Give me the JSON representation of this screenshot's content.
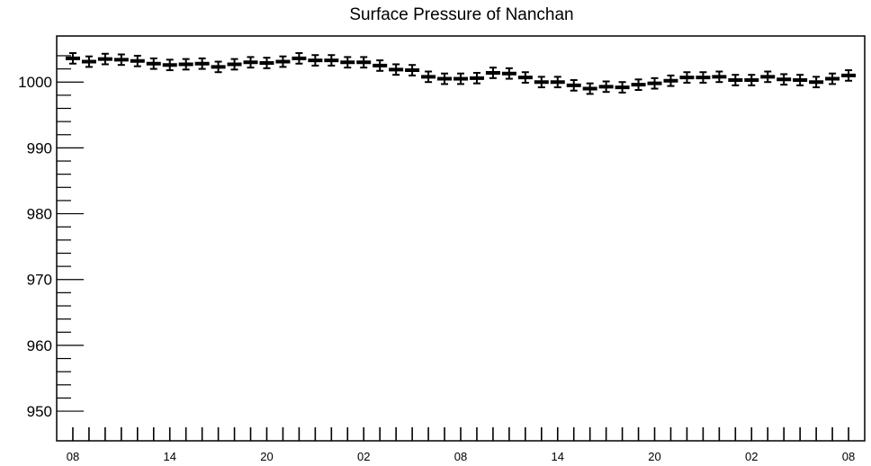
{
  "chart_data": {
    "type": "scatter",
    "title": "Surface Pressure of Nanchan",
    "xlabel": "",
    "ylabel": "",
    "ylim": [
      945.5,
      1007
    ],
    "xlim": [
      -1,
      49
    ],
    "grid": false,
    "legend": "none",
    "y_ticks": [
      1000,
      990,
      980,
      970,
      960,
      950
    ],
    "x_ticks": [
      {
        "x": 0,
        "label": "08"
      },
      {
        "x": 6,
        "label": "14"
      },
      {
        "x": 12,
        "label": "20"
      },
      {
        "x": 18,
        "label": "02"
      },
      {
        "x": 24,
        "label": "08"
      },
      {
        "x": 30,
        "label": "14"
      },
      {
        "x": 36,
        "label": "20"
      },
      {
        "x": 42,
        "label": "02"
      },
      {
        "x": 48,
        "label": "08"
      }
    ],
    "x": [
      0,
      1,
      2,
      3,
      4,
      5,
      6,
      7,
      8,
      9,
      10,
      11,
      12,
      13,
      14,
      15,
      16,
      17,
      18,
      19,
      20,
      21,
      22,
      23,
      24,
      25,
      26,
      27,
      28,
      29,
      30,
      31,
      32,
      33,
      34,
      35,
      36,
      37,
      38,
      39,
      40,
      41,
      42,
      43,
      44,
      45,
      46,
      47,
      48
    ],
    "values": [
      1003.6,
      1003.1,
      1003.5,
      1003.4,
      1003.2,
      1002.8,
      1002.6,
      1002.7,
      1002.8,
      1002.3,
      1002.7,
      1003.0,
      1002.9,
      1003.1,
      1003.6,
      1003.3,
      1003.3,
      1003.0,
      1003.0,
      1002.5,
      1001.9,
      1001.8,
      1000.8,
      1000.5,
      1000.5,
      1000.6,
      1001.4,
      1001.3,
      1000.7,
      1000.0,
      1000.0,
      999.5,
      999.0,
      999.3,
      999.2,
      999.6,
      999.8,
      1000.2,
      1000.7,
      1000.7,
      1000.8,
      1000.3,
      1000.3,
      1000.8,
      1000.4,
      1000.3,
      1000.0,
      1000.5,
      1001.0
    ],
    "error": 0.8,
    "colors": {
      "marker": "#000000",
      "axis": "#000000",
      "background": "#ffffff"
    }
  }
}
